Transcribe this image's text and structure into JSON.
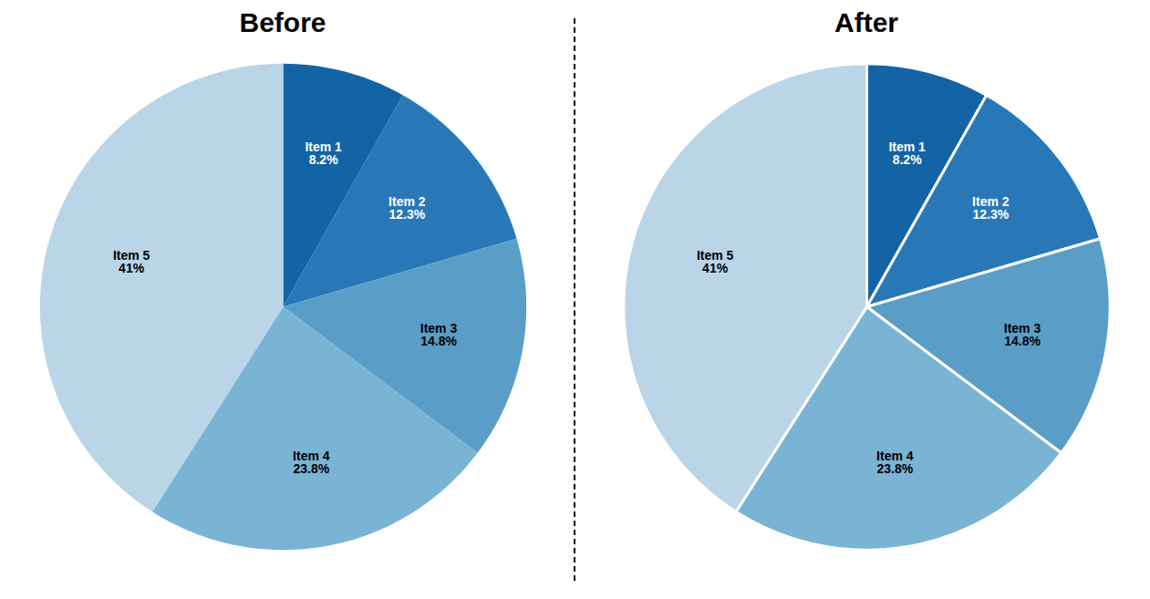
{
  "chart_data": [
    {
      "type": "pie",
      "title": "Before",
      "categories": [
        "Item 1",
        "Item 2",
        "Item 3",
        "Item 4",
        "Item 5"
      ],
      "values": [
        8.2,
        12.3,
        14.8,
        23.8,
        41.0
      ],
      "value_labels": [
        "8.2%",
        "12.3%",
        "14.8%",
        "23.8%",
        "41%"
      ],
      "colors": [
        "#1464a5",
        "#2878b8",
        "#5a9ec8",
        "#7ab4d4",
        "#bad4e8"
      ],
      "data_labels": true
    },
    {
      "type": "pie",
      "title": "After",
      "categories": [
        "Item 1",
        "Item 2",
        "Item 3",
        "Item 4",
        "Item 5"
      ],
      "values": [
        8.2,
        12.3,
        14.8,
        23.8,
        41.0
      ],
      "value_labels": [
        "8.2%",
        "12.3%",
        "14.8%",
        "23.8%",
        "41%"
      ],
      "colors": [
        "#1464a5",
        "#2878b8",
        "#5a9ec8",
        "#7ab4d4",
        "#bad4e8"
      ],
      "data_labels": true
    }
  ]
}
